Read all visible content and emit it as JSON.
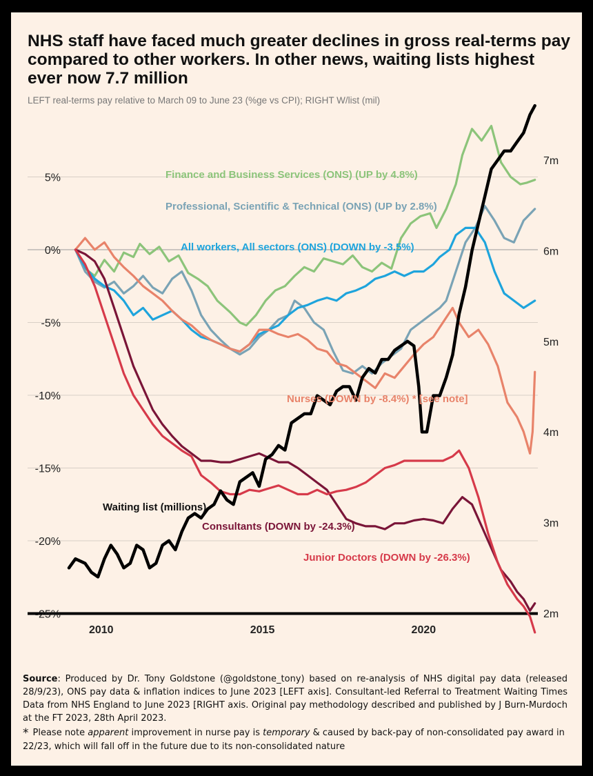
{
  "chart_data": {
    "type": "line",
    "title": "NHS staff have faced much greater declines in gross real-terms pay compared to other workers. In other news, waiting lists highest ever now 7.7 million",
    "subtitle": "LEFT real-terms pay relative to March 09 to June 23 (%ge vs CPI); RIGHT W/list (mil)",
    "left_axis": {
      "ylim": [
        -25,
        6
      ],
      "ticks": [
        5,
        0,
        -5,
        -10,
        -15,
        -20,
        -25
      ],
      "tick_labels": [
        "5%",
        "0%",
        "-5%",
        "-10%",
        "-15%",
        "-20%",
        "-25%"
      ]
    },
    "right_axis": {
      "ylim": [
        2,
        7.5
      ],
      "ticks": [
        7,
        6,
        5,
        4,
        3,
        2
      ],
      "tick_labels": [
        "7m",
        "6m",
        "5m",
        "4m",
        "3m",
        "2m"
      ]
    },
    "x_axis": {
      "xlim": [
        2009.0,
        2023.5
      ],
      "ticks": [
        2010,
        2015,
        2020
      ],
      "tick_labels": [
        "2010",
        "2015",
        "2020"
      ]
    },
    "grid": true,
    "series": [
      {
        "name": "Finance and Business Services (ONS) (UP by 4.8%)",
        "axis": "left",
        "color": "#8cc47a",
        "x": [
          2009.2,
          2009.5,
          2009.8,
          2010.1,
          2010.4,
          2010.7,
          2011.0,
          2011.2,
          2011.5,
          2011.8,
          2012.1,
          2012.4,
          2012.7,
          2013.0,
          2013.3,
          2013.6,
          2014.0,
          2014.3,
          2014.5,
          2014.8,
          2015.1,
          2015.4,
          2015.7,
          2016.0,
          2016.3,
          2016.6,
          2016.9,
          2017.2,
          2017.5,
          2017.8,
          2018.1,
          2018.4,
          2018.7,
          2019.0,
          2019.3,
          2019.6,
          2019.9,
          2020.2,
          2020.4,
          2020.7,
          2021.0,
          2021.2,
          2021.5,
          2021.8,
          2022.1,
          2022.4,
          2022.7,
          2023.0,
          2023.2,
          2023.45
        ],
        "values": [
          0.0,
          -1.3,
          -1.8,
          -0.7,
          -1.5,
          -0.2,
          -0.5,
          0.4,
          -0.3,
          0.2,
          -0.8,
          -0.4,
          -1.6,
          -2.0,
          -2.5,
          -3.5,
          -4.3,
          -5.0,
          -5.2,
          -4.5,
          -3.5,
          -2.8,
          -2.5,
          -1.8,
          -1.2,
          -1.5,
          -0.6,
          -0.8,
          -1.0,
          -0.4,
          -1.2,
          -1.5,
          -0.9,
          -1.3,
          0.8,
          1.8,
          2.3,
          2.5,
          1.5,
          2.8,
          4.5,
          6.5,
          8.3,
          7.5,
          8.5,
          6.0,
          5.0,
          4.5,
          4.6,
          4.8
        ]
      },
      {
        "name": "Professional, Scientific & Technical (ONS) (UP by 2.8%)",
        "axis": "left",
        "color": "#7aa3b5",
        "x": [
          2009.2,
          2009.5,
          2009.8,
          2010.1,
          2010.4,
          2010.7,
          2011.0,
          2011.3,
          2011.6,
          2011.9,
          2012.2,
          2012.5,
          2012.8,
          2013.1,
          2013.4,
          2013.7,
          2014.0,
          2014.3,
          2014.6,
          2014.9,
          2015.2,
          2015.5,
          2015.8,
          2016.0,
          2016.3,
          2016.6,
          2016.9,
          2017.2,
          2017.5,
          2017.8,
          2018.1,
          2018.4,
          2018.7,
          2019.0,
          2019.3,
          2019.6,
          2019.9,
          2020.2,
          2020.5,
          2020.7,
          2021.0,
          2021.3,
          2021.6,
          2021.9,
          2022.2,
          2022.5,
          2022.8,
          2023.1,
          2023.45
        ],
        "values": [
          0.0,
          -1.5,
          -2.2,
          -2.6,
          -2.2,
          -3.0,
          -2.5,
          -1.8,
          -2.6,
          -3.0,
          -2.0,
          -1.5,
          -2.8,
          -4.5,
          -5.5,
          -6.2,
          -6.8,
          -7.2,
          -6.8,
          -6.0,
          -5.5,
          -4.8,
          -4.5,
          -3.5,
          -4.0,
          -5.0,
          -5.5,
          -7.0,
          -8.3,
          -8.5,
          -8.0,
          -8.5,
          -7.8,
          -7.3,
          -6.8,
          -5.5,
          -5.0,
          -4.5,
          -4.0,
          -3.5,
          -1.5,
          0.5,
          1.5,
          3.0,
          2.0,
          0.8,
          0.5,
          2.0,
          2.8
        ]
      },
      {
        "name": "All workers, All sectors (ONS) (DOWN by -3.5%)",
        "axis": "left",
        "color": "#1ea4dc",
        "x": [
          2009.2,
          2009.5,
          2009.8,
          2010.1,
          2010.4,
          2010.7,
          2011.0,
          2011.3,
          2011.6,
          2011.9,
          2012.2,
          2012.5,
          2012.8,
          2013.1,
          2013.4,
          2013.7,
          2014.0,
          2014.3,
          2014.6,
          2014.9,
          2015.2,
          2015.5,
          2015.8,
          2016.1,
          2016.4,
          2016.7,
          2017.0,
          2017.3,
          2017.6,
          2017.9,
          2018.2,
          2018.5,
          2018.8,
          2019.1,
          2019.4,
          2019.7,
          2020.0,
          2020.3,
          2020.5,
          2020.8,
          2021.0,
          2021.3,
          2021.6,
          2021.9,
          2022.2,
          2022.5,
          2022.8,
          2023.1,
          2023.45
        ],
        "values": [
          0.0,
          -1.2,
          -2.0,
          -2.5,
          -2.8,
          -3.5,
          -4.5,
          -4.0,
          -4.8,
          -4.5,
          -4.2,
          -4.8,
          -5.5,
          -6.0,
          -6.2,
          -6.5,
          -6.8,
          -7.0,
          -6.5,
          -5.8,
          -5.5,
          -5.2,
          -4.5,
          -4.0,
          -3.8,
          -3.5,
          -3.3,
          -3.5,
          -3.0,
          -2.8,
          -2.5,
          -2.0,
          -1.8,
          -1.5,
          -1.8,
          -1.5,
          -1.5,
          -1.0,
          -0.5,
          0.0,
          1.0,
          1.5,
          1.5,
          0.5,
          -1.5,
          -3.0,
          -3.5,
          -4.0,
          -3.5
        ]
      },
      {
        "name": "Nurses (DOWN by -8.4%) * [see note]",
        "axis": "left",
        "color": "#e8836a",
        "x": [
          2009.2,
          2009.5,
          2009.8,
          2010.1,
          2010.4,
          2010.7,
          2011.0,
          2011.3,
          2011.6,
          2011.9,
          2012.2,
          2012.5,
          2012.8,
          2013.1,
          2013.4,
          2013.7,
          2014.0,
          2014.3,
          2014.6,
          2014.9,
          2015.2,
          2015.5,
          2015.8,
          2016.1,
          2016.4,
          2016.7,
          2017.0,
          2017.3,
          2017.6,
          2017.9,
          2018.2,
          2018.5,
          2018.8,
          2019.1,
          2019.4,
          2019.7,
          2020.0,
          2020.3,
          2020.6,
          2020.9,
          2021.1,
          2021.4,
          2021.7,
          2022.0,
          2022.3,
          2022.6,
          2022.9,
          2023.1,
          2023.3,
          2023.38,
          2023.45
        ],
        "values": [
          0.0,
          0.8,
          0.0,
          0.5,
          -0.5,
          -1.2,
          -1.8,
          -2.5,
          -3.0,
          -3.5,
          -4.2,
          -4.8,
          -5.2,
          -5.8,
          -6.2,
          -6.5,
          -6.8,
          -7.0,
          -6.5,
          -5.5,
          -5.5,
          -5.8,
          -6.0,
          -5.8,
          -6.2,
          -6.8,
          -7.0,
          -7.8,
          -8.0,
          -8.5,
          -9.0,
          -9.5,
          -8.5,
          -8.8,
          -8.0,
          -7.2,
          -6.5,
          -6.0,
          -5.0,
          -4.0,
          -5.0,
          -6.0,
          -5.5,
          -6.5,
          -8.0,
          -10.5,
          -11.5,
          -12.5,
          -14.0,
          -12.5,
          -8.4
        ]
      },
      {
        "name": "Consultants (DOWN by -24.3%)",
        "axis": "left",
        "color": "#7a1538",
        "x": [
          2009.2,
          2009.5,
          2009.8,
          2010.1,
          2010.4,
          2010.7,
          2011.0,
          2011.3,
          2011.6,
          2011.9,
          2012.2,
          2012.5,
          2012.8,
          2013.1,
          2013.4,
          2013.7,
          2014.0,
          2014.3,
          2014.6,
          2014.9,
          2015.2,
          2015.5,
          2015.8,
          2016.1,
          2016.4,
          2016.7,
          2017.0,
          2017.3,
          2017.6,
          2017.9,
          2018.2,
          2018.5,
          2018.8,
          2019.1,
          2019.4,
          2019.7,
          2020.0,
          2020.3,
          2020.6,
          2020.9,
          2021.2,
          2021.5,
          2021.8,
          2022.1,
          2022.4,
          2022.7,
          2022.9,
          2023.1,
          2023.3,
          2023.45
        ],
        "values": [
          0.0,
          -0.3,
          -0.8,
          -2.0,
          -4.0,
          -6.0,
          -8.0,
          -9.5,
          -11.0,
          -12.0,
          -12.8,
          -13.5,
          -14.0,
          -14.5,
          -14.5,
          -14.6,
          -14.6,
          -14.4,
          -14.2,
          -14.0,
          -14.3,
          -14.6,
          -14.6,
          -15.0,
          -15.5,
          -16.0,
          -16.5,
          -17.5,
          -18.5,
          -18.8,
          -19.0,
          -19.0,
          -19.2,
          -18.8,
          -18.8,
          -18.6,
          -18.5,
          -18.6,
          -18.8,
          -17.8,
          -17.0,
          -17.5,
          -19.0,
          -20.5,
          -22.0,
          -22.8,
          -23.5,
          -24.0,
          -24.8,
          -24.3
        ]
      },
      {
        "name": "Junior Doctors (DOWN by -26.3%)",
        "axis": "left",
        "color": "#d63a4a",
        "x": [
          2009.2,
          2009.5,
          2009.8,
          2010.1,
          2010.4,
          2010.7,
          2011.0,
          2011.3,
          2011.6,
          2011.9,
          2012.2,
          2012.5,
          2012.8,
          2013.1,
          2013.4,
          2013.7,
          2014.0,
          2014.3,
          2014.6,
          2014.9,
          2015.2,
          2015.5,
          2015.8,
          2016.1,
          2016.4,
          2016.7,
          2017.0,
          2017.3,
          2017.6,
          2017.9,
          2018.2,
          2018.5,
          2018.8,
          2019.1,
          2019.4,
          2019.7,
          2020.0,
          2020.3,
          2020.6,
          2020.9,
          2021.1,
          2021.4,
          2021.7,
          2022.0,
          2022.3,
          2022.6,
          2022.9,
          2023.1,
          2023.3,
          2023.45
        ],
        "values": [
          0.0,
          -1.0,
          -2.5,
          -4.5,
          -6.5,
          -8.5,
          -10.0,
          -11.0,
          -12.0,
          -12.8,
          -13.3,
          -13.8,
          -14.2,
          -15.5,
          -16.0,
          -16.6,
          -16.8,
          -16.8,
          -16.5,
          -16.6,
          -16.4,
          -16.2,
          -16.5,
          -16.8,
          -16.8,
          -16.5,
          -16.8,
          -16.6,
          -16.5,
          -16.3,
          -16.0,
          -15.5,
          -15.0,
          -14.8,
          -14.5,
          -14.5,
          -14.5,
          -14.5,
          -14.5,
          -14.2,
          -13.8,
          -15.0,
          -17.0,
          -19.5,
          -21.5,
          -23.0,
          -24.0,
          -24.5,
          -25.2,
          -26.3
        ]
      },
      {
        "name": "Waiting list (millions)",
        "axis": "right",
        "color": "#000000",
        "x": [
          2009.0,
          2009.2,
          2009.5,
          2009.7,
          2009.9,
          2010.1,
          2010.3,
          2010.5,
          2010.7,
          2010.9,
          2011.1,
          2011.3,
          2011.5,
          2011.7,
          2011.9,
          2012.1,
          2012.3,
          2012.5,
          2012.7,
          2012.9,
          2013.1,
          2013.3,
          2013.5,
          2013.7,
          2013.9,
          2014.1,
          2014.3,
          2014.5,
          2014.7,
          2014.9,
          2015.1,
          2015.3,
          2015.5,
          2015.7,
          2015.9,
          2016.1,
          2016.3,
          2016.5,
          2016.7,
          2016.9,
          2017.1,
          2017.3,
          2017.5,
          2017.7,
          2017.9,
          2018.1,
          2018.3,
          2018.5,
          2018.7,
          2018.9,
          2019.1,
          2019.3,
          2019.5,
          2019.7,
          2019.85,
          2019.95,
          2020.1,
          2020.3,
          2020.5,
          2020.7,
          2020.9,
          2021.1,
          2021.3,
          2021.5,
          2021.7,
          2021.9,
          2022.1,
          2022.3,
          2022.5,
          2022.7,
          2022.9,
          2023.1,
          2023.3,
          2023.45
        ],
        "values": [
          2.5,
          2.6,
          2.55,
          2.45,
          2.4,
          2.6,
          2.75,
          2.65,
          2.5,
          2.55,
          2.75,
          2.7,
          2.5,
          2.55,
          2.75,
          2.8,
          2.7,
          2.9,
          3.05,
          3.1,
          3.05,
          3.15,
          3.2,
          3.35,
          3.25,
          3.2,
          3.45,
          3.5,
          3.55,
          3.4,
          3.7,
          3.75,
          3.85,
          3.8,
          4.1,
          4.15,
          4.2,
          4.2,
          4.4,
          4.35,
          4.3,
          4.45,
          4.5,
          4.5,
          4.35,
          4.6,
          4.7,
          4.65,
          4.8,
          4.8,
          4.9,
          4.95,
          5.0,
          4.95,
          4.5,
          4.0,
          4.0,
          4.4,
          4.4,
          4.6,
          4.85,
          5.3,
          5.6,
          6.0,
          6.3,
          6.6,
          6.9,
          7.0,
          7.1,
          7.1,
          7.2,
          7.3,
          7.5,
          7.6
        ]
      }
    ],
    "labels": {
      "finance": "Finance and Business Services (ONS) (UP by 4.8%)",
      "professional": "Professional, Scientific & Technical (ONS) (UP by 2.8%)",
      "all_workers": "All workers, All sectors (ONS) (DOWN by -3.5%)",
      "nurses": "Nurses (DOWN by -8.4%) * [see note]",
      "waiting": "Waiting list (millions)",
      "consultants": "Consultants (DOWN by -24.3%)",
      "juniors": "Junior Doctors (DOWN by -26.3%)"
    }
  },
  "footer": {
    "source_label": "Source",
    "source_text": ": Produced by Dr. Tony Goldstone (@goldstone_tony) based on re-analysis of NHS digital pay data (released 28/9/23), ONS pay data & inflation indices to June 2023 [LEFT axis]. Consultant-led Referral to Treatment Waiting Times Data from NHS England to June 2023 [RIGHT axis. Original pay methodology described and published by J Burn-Murdoch at the FT 2023, 28th April 2023.",
    "note_asterisk": "*",
    "note_pre": "Please note ",
    "note_em1": "apparent",
    "note_mid": " improvement in nurse pay is ",
    "note_em2": "temporary",
    "note_post": " & caused by back-pay of  non-consolidated pay award in 22/23, which will fall off in the future due to its non-consolidated nature"
  }
}
